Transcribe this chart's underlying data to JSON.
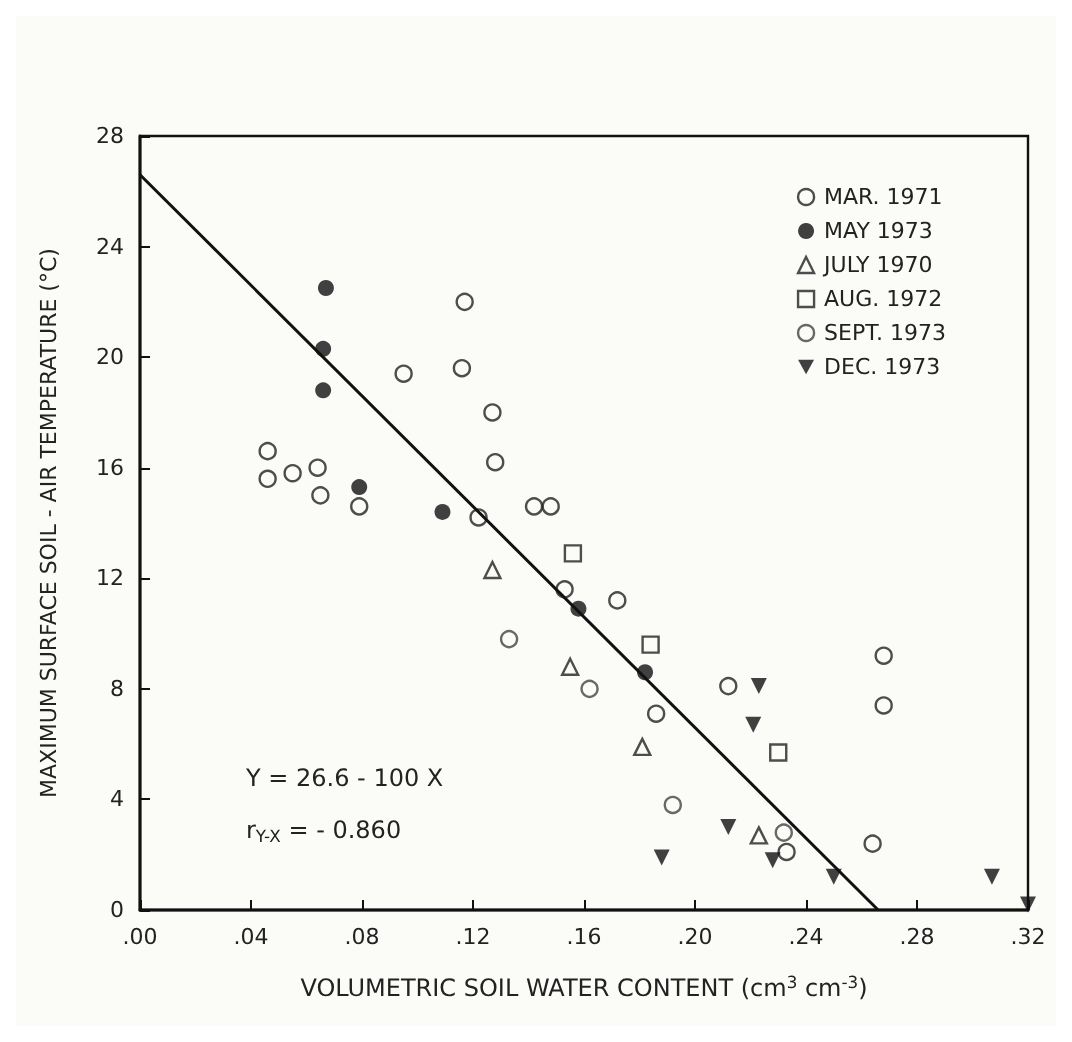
{
  "chart_data": {
    "type": "scatter",
    "xlabel": "VOLUMETRIC SOIL WATER CONTENT (cm$^{3}$ cm$^{-3}$)",
    "ylabel": "MAXIMUM SURFACE SOIL - AIR TEMPERATURE (°C)",
    "xlim": [
      0,
      0.32
    ],
    "ylim": [
      0,
      28
    ],
    "xticks": [
      {
        "value": 0,
        "label": ".00"
      },
      {
        "value": 0.04,
        "label": ".04"
      },
      {
        "value": 0.08,
        "label": ".08"
      },
      {
        "value": 0.12,
        "label": ".12"
      },
      {
        "value": 0.16,
        "label": ".16"
      },
      {
        "value": 0.2,
        "label": ".20"
      },
      {
        "value": 0.24,
        "label": ".24"
      },
      {
        "value": 0.28,
        "label": ".28"
      },
      {
        "value": 0.32,
        "label": ".32"
      }
    ],
    "yticks": [
      0,
      4,
      8,
      12,
      16,
      20,
      24,
      28
    ],
    "grid": false,
    "legend": "top right",
    "annotations": [
      "Y = 26.6 - 100 X",
      "r$_{Y-X}$ = - 0.860"
    ],
    "series": [
      {
        "name": "MAR. 1971",
        "color": "#222222",
        "marker": "circle",
        "x": [
          0.046,
          0.046,
          0.055,
          0.064,
          0.065,
          0.079,
          0.095,
          0.117,
          0.116,
          0.127,
          0.128,
          0.122,
          0.142,
          0.148,
          0.153,
          0.172,
          0.186,
          0.212,
          0.233,
          0.264,
          0.268,
          0.268
        ],
        "values": [
          16.6,
          15.6,
          15.8,
          16.0,
          15.0,
          14.6,
          19.4,
          22.0,
          19.6,
          18.0,
          16.2,
          14.2,
          14.6,
          14.6,
          11.6,
          11.2,
          7.1,
          8.1,
          2.1,
          2.4,
          9.2,
          7.4
        ]
      },
      {
        "name": "MAY 1973",
        "color": "#111111",
        "marker": "dot",
        "x": [
          0.067,
          0.066,
          0.066,
          0.079,
          0.109,
          0.158,
          0.182
        ],
        "values": [
          22.5,
          20.3,
          18.8,
          15.3,
          14.4,
          10.9,
          8.6
        ]
      },
      {
        "name": "JULY 1970",
        "color": "#222222",
        "marker": "triangle",
        "x": [
          0.127,
          0.155,
          0.181,
          0.223
        ],
        "values": [
          12.3,
          8.8,
          5.9,
          2.7
        ]
      },
      {
        "name": "AUG. 1972",
        "color": "#222222",
        "marker": "square",
        "x": [
          0.156,
          0.184,
          0.23
        ],
        "values": [
          12.9,
          9.6,
          5.7
        ]
      },
      {
        "name": "SEPT. 1973",
        "color": "#444444",
        "marker": "circle",
        "x": [
          0.133,
          0.162,
          0.192,
          0.232
        ],
        "values": [
          9.8,
          8.0,
          3.8,
          2.8
        ]
      },
      {
        "name": "DEC. 1973",
        "color": "#111111",
        "marker": "triangle-down",
        "x": [
          0.223,
          0.221,
          0.212,
          0.188,
          0.228,
          0.25,
          0.307,
          0.32
        ],
        "values": [
          8.1,
          6.7,
          3.0,
          1.9,
          1.8,
          1.2,
          1.2,
          0.2
        ]
      },
      {
        "type": "line",
        "color": "#111111",
        "marker": "none",
        "line_style": "solid",
        "x": [
          0,
          0.266
        ],
        "values": [
          26.6,
          0
        ]
      }
    ]
  }
}
